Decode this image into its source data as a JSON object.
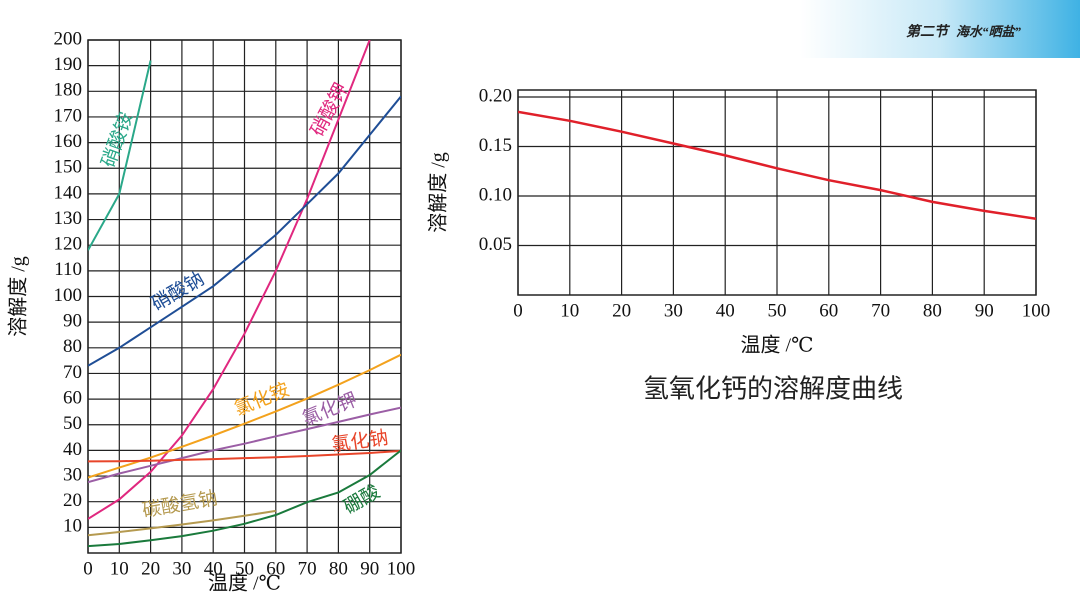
{
  "header": {
    "section": "第二节",
    "topic": "海水“晒盐”"
  },
  "chart_data": [
    {
      "type": "line",
      "ylabel": "溶解度 /g",
      "xlabel": "温度 /℃",
      "x": [
        0,
        10,
        20,
        30,
        40,
        50,
        60,
        70,
        80,
        90,
        100
      ],
      "xlim": [
        0,
        100
      ],
      "xticks": [
        0,
        10,
        20,
        30,
        40,
        50,
        60,
        70,
        80,
        90,
        100
      ],
      "ylim": [
        0,
        200
      ],
      "yticks": [
        10,
        20,
        30,
        40,
        50,
        60,
        70,
        80,
        90,
        100,
        110,
        120,
        130,
        140,
        150,
        160,
        170,
        180,
        190,
        200
      ],
      "grid": true,
      "series": [
        {
          "name": "硝酸铵",
          "color": "#2aa889",
          "values": [
            118,
            140,
            192,
            null,
            null,
            null,
            null,
            null,
            null,
            null,
            null
          ]
        },
        {
          "name": "硝酸钾",
          "color": "#e0287f",
          "values": [
            13.3,
            20.9,
            31.6,
            45.8,
            63.9,
            85.5,
            110,
            138,
            169,
            200,
            null
          ]
        },
        {
          "name": "硝酸钠",
          "color": "#1f4e96",
          "values": [
            73,
            80,
            88,
            96,
            104,
            114,
            124,
            136,
            148,
            163,
            178
          ]
        },
        {
          "name": "氯化铵",
          "color": "#f3a21d",
          "values": [
            29.4,
            33.3,
            37.2,
            41.4,
            45.8,
            50.4,
            55.2,
            60.2,
            65.6,
            71.3,
            77.3
          ]
        },
        {
          "name": "氯化钾",
          "color": "#9b5ea5",
          "values": [
            27.6,
            31,
            34,
            37,
            40,
            42.6,
            45.5,
            48.3,
            51.1,
            54,
            56.7
          ]
        },
        {
          "name": "氯化钠",
          "color": "#e8452a",
          "values": [
            35.7,
            35.8,
            36,
            36.3,
            36.6,
            37,
            37.3,
            37.8,
            38.4,
            39,
            39.8
          ]
        },
        {
          "name": "碳酸氢钠",
          "color": "#b59a50",
          "values": [
            6.9,
            8.2,
            9.6,
            11.1,
            12.7,
            14.5,
            16.4,
            null,
            null,
            null,
            null
          ]
        },
        {
          "name": "硼酸",
          "color": "#1a7a3c",
          "values": [
            2.7,
            3.5,
            5,
            6.6,
            8.7,
            11.4,
            14.8,
            19.8,
            23.6,
            30.4,
            40
          ]
        }
      ]
    },
    {
      "type": "line",
      "title": "氢氧化钙的溶解度曲线",
      "ylabel": "溶解度 /g",
      "xlabel": "温度 /℃",
      "x": [
        0,
        10,
        20,
        30,
        40,
        50,
        60,
        70,
        80,
        90,
        100
      ],
      "xlim": [
        0,
        100
      ],
      "xticks": [
        0,
        10,
        20,
        30,
        40,
        50,
        60,
        70,
        80,
        90,
        100
      ],
      "ylim": [
        0,
        0.2
      ],
      "yticks": [
        0.05,
        {
          "value": 0.1,
          "label": "0.10"
        },
        0.15,
        {
          "value": 0.2,
          "label": "0.20"
        }
      ],
      "grid": true,
      "series": [
        {
          "name": null,
          "color": "#e0202a",
          "values": [
            0.185,
            0.176,
            0.165,
            0.153,
            0.141,
            0.128,
            0.116,
            0.106,
            0.094,
            0.085,
            0.077
          ]
        }
      ]
    }
  ]
}
